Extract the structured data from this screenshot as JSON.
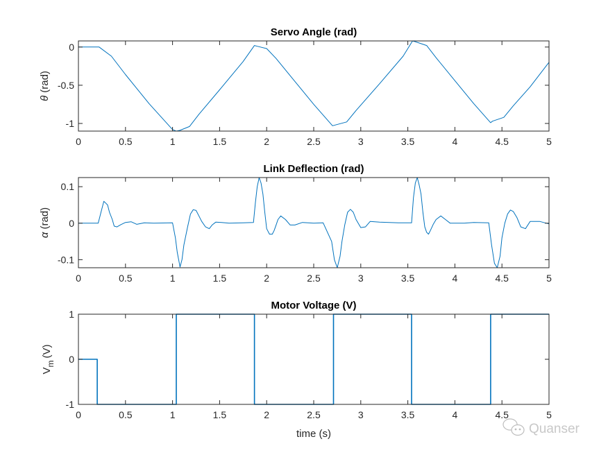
{
  "chart_data": [
    {
      "type": "line",
      "title": "Servo Angle (rad)",
      "ylabel_symbol": "θ",
      "ylabel": "(rad)",
      "xlabel": "",
      "xlim": [
        0,
        5
      ],
      "ylim": [
        -1.1,
        0.08
      ],
      "xticks": [
        "0",
        "0.5",
        "1",
        "1.5",
        "2",
        "2.5",
        "3",
        "3.5",
        "4",
        "4.5",
        "5"
      ],
      "yticks": [
        {
          "v": 0,
          "label": "0"
        },
        {
          "v": -0.5,
          "label": "-0.5"
        },
        {
          "v": -1,
          "label": "-1"
        }
      ],
      "color": "#0072bd",
      "series": [
        {
          "name": "theta",
          "x": [
            0,
            0.22,
            0.35,
            0.5,
            0.75,
            1.0,
            1.04,
            1.08,
            1.18,
            1.28,
            1.5,
            1.75,
            1.87,
            1.9,
            2.0,
            2.1,
            2.3,
            2.5,
            2.7,
            2.73,
            2.85,
            2.95,
            3.2,
            3.45,
            3.55,
            3.58,
            3.7,
            3.8,
            4.0,
            4.2,
            4.38,
            4.4,
            4.52,
            4.62,
            4.8,
            5.0
          ],
          "y": [
            0,
            0,
            -0.12,
            -0.36,
            -0.74,
            -1.08,
            -1.1,
            -1.09,
            -1.04,
            -0.88,
            -0.56,
            -0.19,
            0.02,
            0.01,
            -0.02,
            -0.15,
            -0.45,
            -0.75,
            -1.03,
            -1.02,
            -0.98,
            -0.83,
            -0.48,
            -0.12,
            0.08,
            0.07,
            0.02,
            -0.14,
            -0.44,
            -0.74,
            -0.99,
            -0.97,
            -0.92,
            -0.77,
            -0.52,
            -0.2
          ]
        }
      ]
    },
    {
      "type": "line",
      "title": "Link Deflection (rad)",
      "ylabel_symbol": "α",
      "ylabel": "(rad)",
      "xlabel": "",
      "xlim": [
        0,
        5
      ],
      "ylim": [
        -0.122,
        0.125
      ],
      "xticks": [
        "0",
        "0.5",
        "1",
        "1.5",
        "2",
        "2.5",
        "3",
        "3.5",
        "4",
        "4.5",
        "5"
      ],
      "yticks": [
        {
          "v": 0.1,
          "label": "0.1"
        },
        {
          "v": 0,
          "label": "0"
        },
        {
          "v": -0.1,
          "label": "-0.1"
        }
      ],
      "color": "#0072bd",
      "series": [
        {
          "name": "alpha",
          "x": [
            0,
            0.21,
            0.24,
            0.27,
            0.29,
            0.31,
            0.33,
            0.36,
            0.38,
            0.41,
            0.45,
            0.5,
            0.56,
            0.62,
            0.7,
            0.8,
            1.0,
            1.03,
            1.05,
            1.08,
            1.1,
            1.12,
            1.16,
            1.19,
            1.22,
            1.25,
            1.28,
            1.31,
            1.35,
            1.39,
            1.42,
            1.46,
            1.52,
            1.6,
            1.75,
            1.86,
            1.88,
            1.9,
            1.92,
            1.94,
            1.96,
            1.98,
            2.0,
            2.03,
            2.06,
            2.08,
            2.1,
            2.12,
            2.15,
            2.2,
            2.25,
            2.3,
            2.38,
            2.5,
            2.6,
            2.69,
            2.72,
            2.75,
            2.78,
            2.8,
            2.83,
            2.86,
            2.89,
            2.92,
            2.95,
            3.0,
            3.05,
            3.1,
            3.2,
            3.3,
            3.4,
            3.54,
            3.56,
            3.58,
            3.6,
            3.62,
            3.64,
            3.66,
            3.68,
            3.7,
            3.72,
            3.74,
            3.77,
            3.8,
            3.85,
            3.9,
            3.95,
            4.0,
            4.1,
            4.2,
            4.36,
            4.39,
            4.42,
            4.45,
            4.48,
            4.5,
            4.53,
            4.56,
            4.59,
            4.62,
            4.66,
            4.7,
            4.75,
            4.8,
            4.9,
            5.0
          ],
          "y": [
            0,
            0,
            0.03,
            0.06,
            0.055,
            0.05,
            0.03,
            0.01,
            -0.008,
            -0.01,
            -0.004,
            0.002,
            0.004,
            -0.003,
            0.001,
            0,
            0.001,
            -0.04,
            -0.08,
            -0.12,
            -0.1,
            -0.06,
            -0.01,
            0.025,
            0.037,
            0.035,
            0.02,
            0.005,
            -0.01,
            -0.015,
            -0.005,
            0.003,
            0.002,
            0,
            0.001,
            0.002,
            0.055,
            0.1,
            0.125,
            0.11,
            0.08,
            0.03,
            -0.015,
            -0.03,
            -0.03,
            -0.02,
            -0.005,
            0.01,
            0.02,
            0.01,
            -0.005,
            -0.005,
            0.002,
            0,
            0.001,
            -0.05,
            -0.1,
            -0.122,
            -0.09,
            -0.05,
            -0.005,
            0.03,
            0.038,
            0.03,
            0.01,
            -0.012,
            -0.01,
            0.005,
            0.003,
            0.002,
            0.001,
            0.001,
            0.07,
            0.11,
            0.125,
            0.105,
            0.08,
            0.03,
            -0.01,
            -0.025,
            -0.03,
            -0.02,
            -0.003,
            0.01,
            0.02,
            0.01,
            0,
            0,
            0,
            0.002,
            0.001,
            -0.06,
            -0.11,
            -0.122,
            -0.09,
            -0.04,
            0.0,
            0.025,
            0.036,
            0.032,
            0.015,
            -0.01,
            -0.015,
            0.005,
            0.005,
            -0.002
          ]
        }
      ]
    },
    {
      "type": "line",
      "title": "Motor Voltage (V)",
      "ylabel_symbol": "V",
      "ylabel_sub": "m",
      "ylabel": "(V)",
      "xlabel": "time (s)",
      "xlim": [
        0,
        5
      ],
      "ylim": [
        -1,
        1
      ],
      "xticks": [
        "0",
        "0.5",
        "1",
        "1.5",
        "2",
        "2.5",
        "3",
        "3.5",
        "4",
        "4.5",
        "5"
      ],
      "yticks": [
        {
          "v": 1,
          "label": "1"
        },
        {
          "v": 0,
          "label": "0"
        },
        {
          "v": -1,
          "label": "-1"
        }
      ],
      "color": "#0072bd",
      "series": [
        {
          "name": "Vm",
          "x": [
            0,
            0.2,
            0.2,
            1.04,
            1.04,
            1.87,
            1.87,
            2.71,
            2.71,
            3.54,
            3.54,
            4.38,
            4.38,
            5.0
          ],
          "y": [
            0,
            0,
            -1,
            -1,
            1,
            1,
            -1,
            -1,
            1,
            1,
            -1,
            -1,
            1,
            1
          ]
        }
      ]
    }
  ],
  "watermark": "Quanser"
}
